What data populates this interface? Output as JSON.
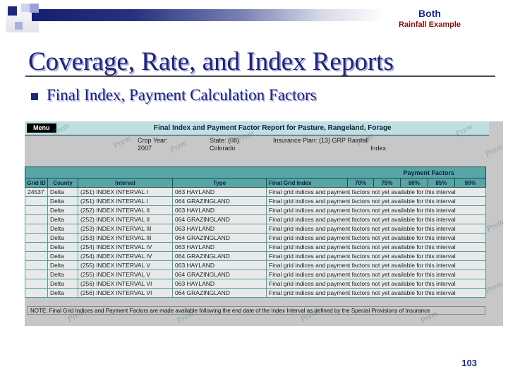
{
  "slide": {
    "corner_label": "Both",
    "corner_sublabel": "Rainfall Example",
    "title": "Coverage, Rate, and Index Reports",
    "bullet": "Final Index, Payment Calculation Factors",
    "page_number": "103"
  },
  "report": {
    "menu_button": "Menu",
    "header_title": "Final Index and Payment Factor Report for Pasture, Rangeland, Forage",
    "fields": [
      {
        "label": "Crop Year:",
        "value": "2007"
      },
      {
        "label": "State: (08)",
        "value": "Colorado"
      },
      {
        "label": "Insurance Plan: (13) GRP Rainfall",
        "value": "Index"
      }
    ],
    "payment_factors_label": "Payment Factors",
    "columns": [
      "Grid ID",
      "County",
      "Interval",
      "Type",
      "Final Grid Index",
      "70%",
      "75%",
      "80%",
      "85%",
      "90%"
    ],
    "row_message": "Final grid indices and payment factors not yet available for this interval",
    "rows": [
      {
        "grid_id": "24537",
        "county": "Delta",
        "interval": "(251) INDEX INTERVAL I",
        "type": "063 HAYLAND"
      },
      {
        "grid_id": "",
        "county": "Delta",
        "interval": "(251) INDEX INTERVAL I",
        "type": "064 GRAZINGLAND"
      },
      {
        "grid_id": "",
        "county": "Delta",
        "interval": "(252) INDEX INTERVAL II",
        "type": "063 HAYLAND"
      },
      {
        "grid_id": "",
        "county": "Delta",
        "interval": "(252) INDEX INTERVAL II",
        "type": "064 GRAZINGLAND"
      },
      {
        "grid_id": "",
        "county": "Delta",
        "interval": "(253) INDEX INTERVAL III",
        "type": "063 HAYLAND"
      },
      {
        "grid_id": "",
        "county": "Delta",
        "interval": "(253) INDEX INTERVAL III",
        "type": "064 GRAZINGLAND"
      },
      {
        "grid_id": "",
        "county": "Delta",
        "interval": "(254) INDEX INTERVAL IV",
        "type": "063 HAYLAND"
      },
      {
        "grid_id": "",
        "county": "Delta",
        "interval": "(254) INDEX INTERVAL IV",
        "type": "064 GRAZINGLAND"
      },
      {
        "grid_id": "",
        "county": "Delta",
        "interval": "(255) INDEX INTERVAL V",
        "type": "063 HAYLAND"
      },
      {
        "grid_id": "",
        "county": "Delta",
        "interval": "(255) INDEX INTERVAL V",
        "type": "064 GRAZINGLAND"
      },
      {
        "grid_id": "",
        "county": "Delta",
        "interval": "(256) INDEX INTERVAL VI",
        "type": "063 HAYLAND"
      },
      {
        "grid_id": "",
        "county": "Delta",
        "interval": "(256) INDEX INTERVAL VI",
        "type": "064 GRAZINGLAND"
      }
    ],
    "note": "NOTE: Final Grid Indices and Payment Factors are made available following the end date of the Index Interval as defined by the Special Provisions of Insurance",
    "watermark_text": "Prem"
  },
  "colors": {
    "accent_navy": "#1e2a78",
    "accent_red": "#7a1010",
    "teal_header": "#57a5a5",
    "cyan_band": "#bfe0e0",
    "gray_bg": "#c7c7c7"
  }
}
